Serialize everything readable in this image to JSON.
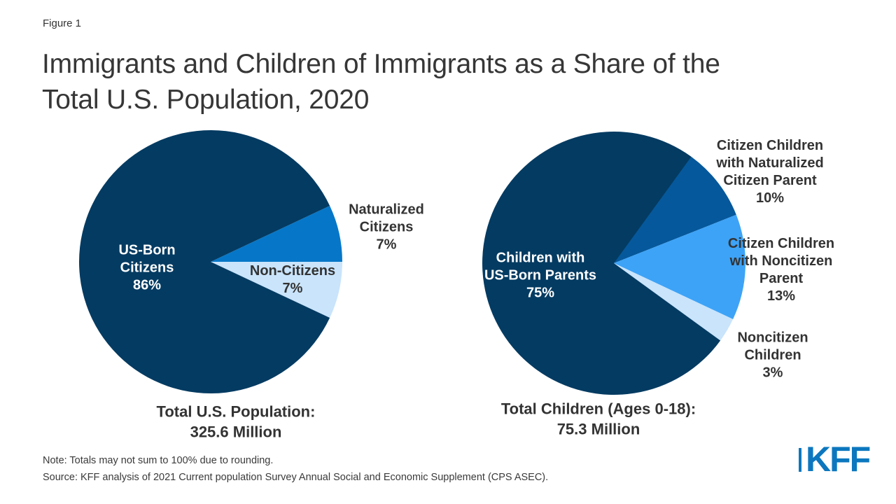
{
  "figure_label": "Figure 1",
  "title": "Immigrants and Children of Immigrants as a Share of the\nTotal U.S. Population, 2020",
  "note": "Note: Totals may not sum to 100% due to rounding.",
  "source": "Source: KFF analysis of 2021 Current population Survey Annual Social and Economic Supplement (CPS ASEC).",
  "logo": {
    "text": "KFF",
    "color": "#0C77BE"
  },
  "colors": {
    "navy": "#043B62",
    "medium_blue": "#0677C8",
    "steel_blue": "#05589B",
    "bright_blue": "#3DA3F7",
    "pale_blue": "#C9E4FB",
    "text_dark": "#333333"
  },
  "chart_data": [
    {
      "type": "pie",
      "name": "total-us-population",
      "start_angle_deg": 25.2,
      "slices": [
        {
          "label": "Naturalized Citizens",
          "pct": 7,
          "color": "#0677C8"
        },
        {
          "label": "Non-Citizens",
          "pct": 7,
          "color": "#C9E4FB"
        },
        {
          "label": "US-Born Citizens",
          "pct": 86,
          "color": "#043B62"
        }
      ],
      "labels": {
        "inside": "US-Born\nCitizens\n86%",
        "non_citizens": "Non-Citizens\n7%",
        "naturalized": "Naturalized\nCitizens\n7%"
      },
      "total_label": "Total U.S. Population:\n325.6 Million"
    },
    {
      "type": "pie",
      "name": "total-children-ages-0-18",
      "start_angle_deg": 57.6,
      "slices": [
        {
          "label": "Citizen Children with Naturalized Citizen Parent",
          "pct": 10,
          "color": "#05589B"
        },
        {
          "label": "Citizen Children with Noncitizen Parent",
          "pct": 13,
          "color": "#3DA3F7"
        },
        {
          "label": "Noncitizen Children",
          "pct": 3,
          "color": "#C9E4FB"
        },
        {
          "label": "Children with US-Born Parents",
          "pct": 75,
          "color": "#043B62"
        }
      ],
      "labels": {
        "inside": "Children with\nUS-Born Parents\n75%",
        "naturalized_parent": "Citizen Children\nwith Naturalized\nCitizen Parent\n10%",
        "noncitizen_parent": "Citizen Children\nwith Noncitizen\nParent\n13%",
        "noncitizen_children": "Noncitizen\nChildren\n3%"
      },
      "total_label": "Total Children (Ages 0-18):\n75.3 Million"
    }
  ]
}
